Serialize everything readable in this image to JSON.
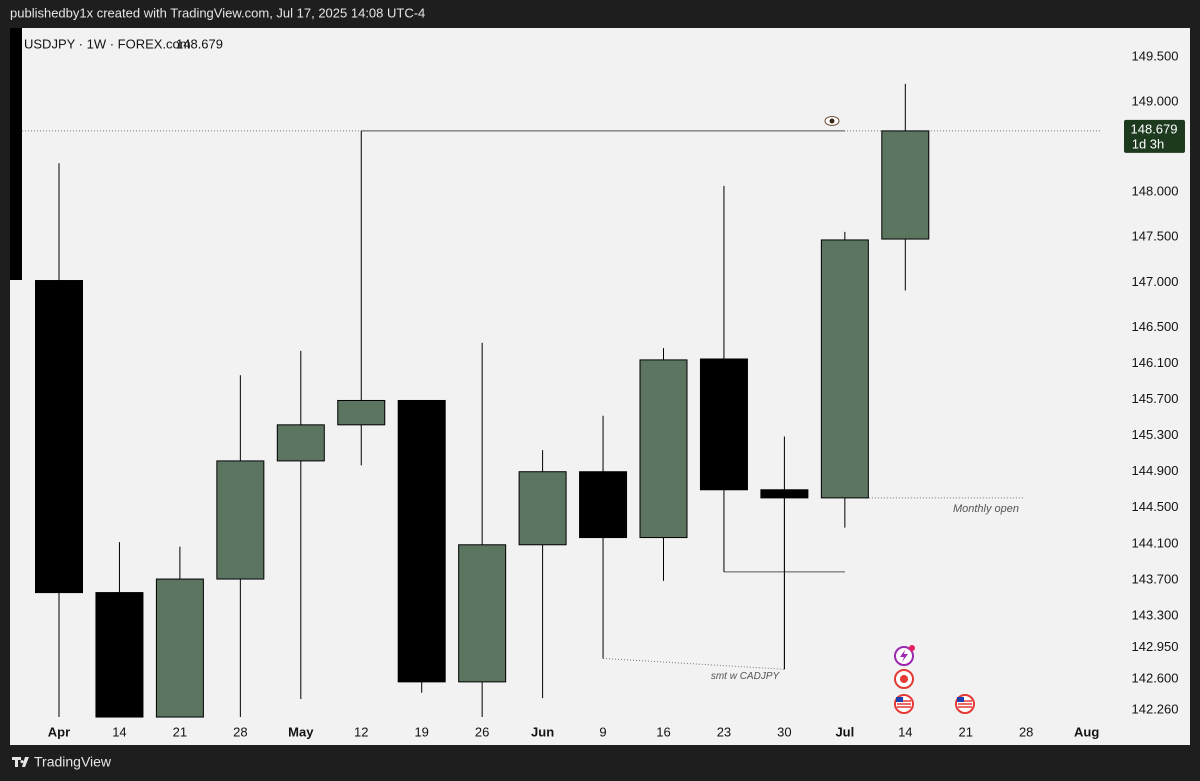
{
  "header": "publishedby1x created with TradingView.com, Jul 17, 2025 14:08 UTC-4",
  "footer": "TradingView",
  "chart_data": {
    "type": "candlestick",
    "title": "USDJPY · 1W · FOREX.com",
    "last_price": 148.679,
    "countdown": "1d 3h",
    "categories": [
      "Apr",
      "14",
      "21",
      "28",
      "May",
      "12",
      "19",
      "26",
      "Jun",
      "9",
      "16",
      "23",
      "30",
      "Jul",
      "14",
      "21",
      "28",
      "Aug"
    ],
    "open": [
      147.02,
      143.56,
      142.18,
      143.71,
      145.02,
      145.42,
      145.69,
      142.57,
      144.09,
      144.9,
      144.17,
      146.15,
      144.7,
      144.61,
      147.48,
      null,
      null,
      null
    ],
    "high": [
      148.32,
      144.12,
      144.07,
      145.97,
      146.24,
      148.68,
      145.69,
      146.33,
      145.14,
      145.52,
      146.27,
      148.07,
      145.29,
      147.56,
      149.2,
      null,
      null,
      null
    ],
    "low": [
      142.18,
      142.18,
      142.18,
      142.18,
      142.38,
      144.97,
      142.45,
      142.18,
      142.39,
      142.83,
      143.69,
      143.79,
      142.71,
      144.28,
      146.91,
      null,
      null,
      null
    ],
    "close": [
      143.56,
      142.18,
      143.71,
      145.02,
      145.42,
      145.69,
      142.57,
      144.09,
      144.9,
      144.17,
      146.14,
      144.7,
      144.61,
      147.47,
      148.679,
      null,
      null,
      null
    ],
    "up_color": "#5b7561",
    "down_color": "#000000",
    "ylim": [
      141.87,
      149.82
    ],
    "yticks": [
      {
        "value": 149.5,
        "label": "149.500"
      },
      {
        "value": 149.0,
        "label": "149.000"
      },
      {
        "value": 148.0,
        "label": "148.000"
      },
      {
        "value": 147.5,
        "label": "147.500"
      },
      {
        "value": 147.0,
        "label": "147.000"
      },
      {
        "value": 146.5,
        "label": "146.500"
      },
      {
        "value": 146.1,
        "label": "146.100"
      },
      {
        "value": 145.7,
        "label": "145.700"
      },
      {
        "value": 145.3,
        "label": "145.300"
      },
      {
        "value": 144.9,
        "label": "144.900"
      },
      {
        "value": 144.5,
        "label": "144.500"
      },
      {
        "value": 144.1,
        "label": "144.100"
      },
      {
        "value": 143.7,
        "label": "143.700"
      },
      {
        "value": 143.3,
        "label": "143.300"
      },
      {
        "value": 142.95,
        "label": "142.950"
      },
      {
        "value": 142.6,
        "label": "142.600"
      },
      {
        "value": 142.26,
        "label": "142.260"
      }
    ],
    "grid": false,
    "annotations": [
      "Monthly open",
      "smt w CADJPY"
    ]
  }
}
